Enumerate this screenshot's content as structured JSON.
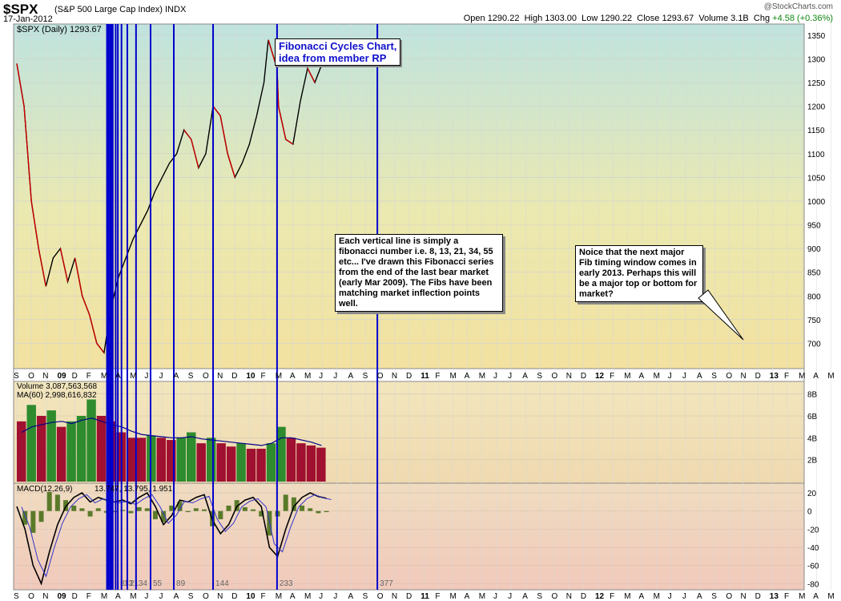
{
  "header": {
    "symbol": "$SPX",
    "name": "(S&P 500 Large Cap Index) INDX",
    "date": "17-Jan-2012",
    "brand": "@StockCharts.com",
    "open_label": "Open",
    "open": "1290.22",
    "high_label": "High",
    "high": "1303.00",
    "low_label": "Low",
    "low": "1290.22",
    "close_label": "Close",
    "close": "1293.67",
    "volume_label": "Volume",
    "volume": "3.1B",
    "chg_label": "Chg",
    "chg": "+4.58 (+0.36%)"
  },
  "panels": {
    "price_legend": "$SPX (Daily) 1293.67",
    "volume_legend": "Volume 3,087,563,568",
    "ma_legend": "MA(60) 2,998,616,832",
    "macd_legend_name": "MACD(12,26,9)",
    "macd_legend_values": "13.747, 13.795, 1.951"
  },
  "annotations": {
    "title_line1": "Fibonacci Cycles Chart,",
    "title_line2": "idea from member RP",
    "note_center": "Each vertical line is simply a fibonacci number i.e. 8, 13, 21, 34, 55 etc...  I've drawn this Fibonacci series from the end of the last bear market (early Mar 2009).  The Fibs have been matching market inflection points well.",
    "note_right": "Noice that the next major Fib timing window comes in early 2013.  Perhaps this will be a major top or bottom for market?"
  },
  "colors": {
    "fib_line": "#0000cc",
    "price_up": "#000000",
    "price_down": "#cc0000",
    "volume_up": "#2e8b2e",
    "volume_down": "#a01030",
    "ma_line": "#000088",
    "macd_line": "#000000",
    "signal_line": "#3333cc",
    "histogram": "#5a7a2a"
  },
  "chart_data": {
    "type": "line",
    "title": "$SPX (Daily)",
    "x_months": [
      "S",
      "O",
      "N",
      "09",
      "D",
      "F",
      "M",
      "A",
      "M",
      "J",
      "J",
      "A",
      "S",
      "O",
      "N",
      "D",
      "10",
      "F",
      "M",
      "A",
      "M",
      "J",
      "J",
      "A",
      "S",
      "O",
      "N",
      "D",
      "11",
      "F",
      "M",
      "A",
      "M",
      "J",
      "J",
      "A",
      "S",
      "O",
      "N",
      "D",
      "12",
      "F",
      "M",
      "A",
      "M",
      "J",
      "J",
      "A",
      "S",
      "O",
      "N",
      "D",
      "13",
      "F",
      "M",
      "A",
      "M"
    ],
    "price_axis": {
      "ticks": [
        700,
        750,
        800,
        850,
        900,
        950,
        1000,
        1050,
        1100,
        1150,
        1200,
        1250,
        1300,
        1350
      ],
      "ylim": [
        650,
        1370
      ]
    },
    "volume_axis": {
      "ticks": [
        "2B",
        "4B",
        "6B",
        "8B"
      ],
      "ylim": [
        0,
        9
      ]
    },
    "macd_axis": {
      "ticks": [
        20,
        0,
        -20,
        -40,
        -60,
        -80
      ],
      "ylim": [
        -85,
        28
      ]
    },
    "fib_lines": [
      {
        "label": "",
        "month": 6.2
      },
      {
        "label": "",
        "month": 6.3
      },
      {
        "label": "",
        "month": 6.4
      },
      {
        "label": "",
        "month": 6.5
      },
      {
        "label": "",
        "month": 6.6
      },
      {
        "label": "",
        "month": 6.8
      },
      {
        "label": "8",
        "month": 6.95
      },
      {
        "label": "13",
        "month": 7.2
      },
      {
        "label": "21",
        "month": 7.6
      },
      {
        "label": "34",
        "month": 8.2
      },
      {
        "label": "55",
        "month": 9.2
      },
      {
        "label": "89",
        "month": 10.8
      },
      {
        "label": "144",
        "month": 13.5
      },
      {
        "label": "233",
        "month": 17.9
      },
      {
        "label": "377",
        "month": 24.8
      }
    ],
    "series": [
      {
        "name": "$SPX",
        "x_month": [
          0,
          0.5,
          1,
          1.5,
          2,
          2.5,
          3,
          3.5,
          4,
          4.5,
          5,
          5.5,
          6,
          6.3,
          6.6,
          7,
          7.5,
          8,
          8.5,
          9,
          9.5,
          10,
          10.5,
          11,
          11.5,
          12,
          12.5,
          13,
          13.5,
          14,
          14.5,
          15,
          15.5,
          16,
          16.5,
          17,
          17.3,
          17.6,
          17.9,
          18,
          18.5,
          19,
          19.5,
          20,
          20.5,
          21,
          21.3
        ],
        "values": [
          1290,
          1200,
          1000,
          900,
          820,
          880,
          900,
          830,
          880,
          800,
          760,
          700,
          680,
          740,
          790,
          840,
          880,
          920,
          950,
          980,
          1020,
          1050,
          1080,
          1100,
          1150,
          1130,
          1070,
          1100,
          1200,
          1180,
          1100,
          1050,
          1080,
          1120,
          1180,
          1250,
          1340,
          1310,
          1280,
          1200,
          1130,
          1120,
          1210,
          1280,
          1250,
          1290,
          1294
        ]
      },
      {
        "name": "Volume",
        "values_B": [
          5.5,
          7,
          6,
          6.5,
          5,
          5.5,
          6,
          7.5,
          6,
          5.5,
          4.5,
          4,
          4,
          4.2,
          4,
          3.8,
          4,
          4.5,
          3.5,
          4,
          3.5,
          3.2,
          3.5,
          3,
          3,
          3.5,
          5,
          4,
          3.5,
          3.3,
          3.1
        ]
      },
      {
        "name": "MA(60)",
        "values_B": [
          4.5,
          5,
          5.2,
          5.4,
          5.5,
          5.3,
          5.6,
          5.8,
          5.5,
          5.2,
          5,
          4.6,
          4.3,
          4.2,
          4.1,
          4,
          4,
          4.1,
          3.9,
          3.8,
          3.7,
          3.6,
          3.5,
          3.4,
          3.3,
          3.5,
          4,
          4,
          3.8,
          3.6,
          3.3
        ]
      },
      {
        "name": "MACD",
        "values": [
          5,
          -20,
          -60,
          -80,
          -45,
          -15,
          5,
          15,
          20,
          10,
          15,
          12,
          10,
          12,
          8,
          15,
          20,
          5,
          -15,
          -5,
          12,
          10,
          15,
          18,
          -10,
          -25,
          -15,
          5,
          12,
          15,
          5,
          -40,
          -50,
          -20,
          5,
          15,
          20,
          16,
          14
        ]
      }
    ]
  }
}
